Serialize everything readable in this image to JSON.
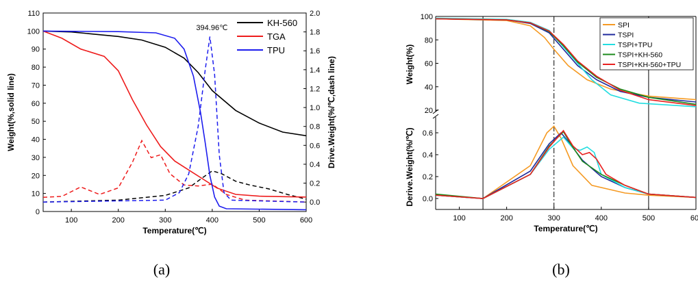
{
  "chart_data": [
    {
      "type": "line",
      "panel_label": "(a)",
      "xlabel": "Temperature(℃)",
      "ylabel_left": "Weight(%,solid line)",
      "ylabel_right": "Drive.Weight(%/℃,dash line)",
      "xlim": [
        40,
        600
      ],
      "ylim_left": [
        0,
        110
      ],
      "ylim_right": [
        -0.1,
        2.0
      ],
      "xticks": [
        "100",
        "200",
        "300",
        "400",
        "500",
        "600"
      ],
      "yticks_left": [
        "0",
        "10",
        "20",
        "30",
        "40",
        "50",
        "60",
        "70",
        "80",
        "90",
        "100",
        "110"
      ],
      "yticks_right": [
        "0.0",
        "0.2",
        "0.4",
        "0.6",
        "0.8",
        "1.0",
        "1.2",
        "1.4",
        "1.6",
        "1.8",
        "2.0"
      ],
      "legend_position": "top-right",
      "annotation": "394.96℃",
      "series": [
        {
          "name": "KH-560",
          "color": "#000000",
          "weight": [
            [
              40,
              100
            ],
            [
              100,
              99.5
            ],
            [
              200,
              97
            ],
            [
              250,
              95
            ],
            [
              300,
              91
            ],
            [
              340,
              85
            ],
            [
              370,
              77
            ],
            [
              400,
              67
            ],
            [
              450,
              56
            ],
            [
              500,
              49
            ],
            [
              550,
              44
            ],
            [
              600,
              42
            ]
          ],
          "deriv": [
            [
              40,
              0
            ],
            [
              200,
              0.02
            ],
            [
              300,
              0.07
            ],
            [
              350,
              0.15
            ],
            [
              380,
              0.26
            ],
            [
              400,
              0.33
            ],
            [
              420,
              0.3
            ],
            [
              450,
              0.22
            ],
            [
              480,
              0.18
            ],
            [
              520,
              0.14
            ],
            [
              560,
              0.08
            ],
            [
              600,
              0.03
            ]
          ]
        },
        {
          "name": "TGA",
          "color": "#ee1c1c",
          "weight": [
            [
              40,
              100
            ],
            [
              80,
              96
            ],
            [
              120,
              90
            ],
            [
              170,
              86
            ],
            [
              200,
              78
            ],
            [
              230,
              62
            ],
            [
              260,
              48
            ],
            [
              290,
              36
            ],
            [
              320,
              28
            ],
            [
              350,
              23
            ],
            [
              380,
              18
            ],
            [
              410,
              13
            ],
            [
              450,
              9.5
            ],
            [
              500,
              8.5
            ],
            [
              600,
              8
            ]
          ],
          "deriv": [
            [
              40,
              0.05
            ],
            [
              80,
              0.06
            ],
            [
              120,
              0.16
            ],
            [
              160,
              0.08
            ],
            [
              200,
              0.15
            ],
            [
              230,
              0.42
            ],
            [
              250,
              0.65
            ],
            [
              270,
              0.47
            ],
            [
              290,
              0.5
            ],
            [
              310,
              0.3
            ],
            [
              340,
              0.18
            ],
            [
              370,
              0.17
            ],
            [
              400,
              0.19
            ],
            [
              430,
              0.08
            ],
            [
              470,
              0.02
            ],
            [
              600,
              0
            ]
          ]
        },
        {
          "name": "TPU",
          "color": "#1c1cee",
          "weight": [
            [
              40,
              100
            ],
            [
              200,
              99.7
            ],
            [
              280,
              99
            ],
            [
              320,
              96
            ],
            [
              340,
              90
            ],
            [
              360,
              75
            ],
            [
              375,
              55
            ],
            [
              385,
              38
            ],
            [
              395,
              20
            ],
            [
              405,
              8
            ],
            [
              415,
              3
            ],
            [
              430,
              1.5
            ],
            [
              600,
              1
            ]
          ],
          "deriv": [
            [
              40,
              0
            ],
            [
              300,
              0.02
            ],
            [
              330,
              0.1
            ],
            [
              350,
              0.3
            ],
            [
              370,
              0.8
            ],
            [
              385,
              1.4
            ],
            [
              395,
              1.75
            ],
            [
              405,
              1.35
            ],
            [
              415,
              0.5
            ],
            [
              425,
              0.1
            ],
            [
              440,
              0.02
            ],
            [
              600,
              0
            ]
          ]
        }
      ]
    },
    {
      "type": "line",
      "panel_label": "(b)",
      "xlabel": "Temperature(℃)",
      "ylabel_top": "Weight(%)",
      "ylabel_bottom": "Derive.Weight(%/℃)",
      "xlim": [
        50,
        600
      ],
      "ylim_top": [
        20,
        100
      ],
      "ylim_bottom": [
        -0.1,
        0.75
      ],
      "xticks": [
        "100",
        "200",
        "300",
        "400",
        "500",
        "60"
      ],
      "yticks_top": [
        "20",
        "40",
        "60",
        "80",
        "100"
      ],
      "yticks_bottom": [
        "0.0",
        "0.2",
        "0.4",
        "0.6"
      ],
      "vertical_lines": [
        150,
        300,
        500
      ],
      "legend_position": "top-right",
      "series": [
        {
          "name": "SPI",
          "color": "#f59a23",
          "weight": [
            [
              50,
              98
            ],
            [
              200,
              96.5
            ],
            [
              250,
              92
            ],
            [
              280,
              82
            ],
            [
              300,
              72
            ],
            [
              330,
              58
            ],
            [
              370,
              46
            ],
            [
              420,
              38
            ],
            [
              500,
              32
            ],
            [
              600,
              29
            ]
          ],
          "deriv": [
            [
              50,
              0.03
            ],
            [
              150,
              0
            ],
            [
              250,
              0.3
            ],
            [
              285,
              0.6
            ],
            [
              300,
              0.66
            ],
            [
              315,
              0.55
            ],
            [
              340,
              0.3
            ],
            [
              380,
              0.12
            ],
            [
              450,
              0.05
            ],
            [
              500,
              0.03
            ],
            [
              600,
              0.01
            ]
          ]
        },
        {
          "name": "TSPI",
          "color": "#1f2a9c",
          "weight": [
            [
              50,
              98
            ],
            [
              200,
              97
            ],
            [
              250,
              94
            ],
            [
              290,
              86
            ],
            [
              320,
              72
            ],
            [
              350,
              58
            ],
            [
              390,
              46
            ],
            [
              440,
              36
            ],
            [
              500,
              31
            ],
            [
              600,
              27
            ]
          ],
          "deriv": [
            [
              50,
              0.03
            ],
            [
              150,
              0
            ],
            [
              250,
              0.25
            ],
            [
              290,
              0.5
            ],
            [
              315,
              0.6
            ],
            [
              330,
              0.52
            ],
            [
              360,
              0.35
            ],
            [
              400,
              0.2
            ],
            [
              450,
              0.1
            ],
            [
              500,
              0.04
            ],
            [
              600,
              0.01
            ]
          ]
        },
        {
          "name": "TSPI+TPU",
          "color": "#22dde0",
          "weight": [
            [
              50,
              98.5
            ],
            [
              200,
              97.5
            ],
            [
              250,
              95
            ],
            [
              290,
              88
            ],
            [
              320,
              74
            ],
            [
              350,
              60
            ],
            [
              380,
              46
            ],
            [
              420,
              33
            ],
            [
              480,
              26
            ],
            [
              600,
              23
            ]
          ],
          "deriv": [
            [
              50,
              0.03
            ],
            [
              150,
              0
            ],
            [
              250,
              0.22
            ],
            [
              290,
              0.45
            ],
            [
              320,
              0.56
            ],
            [
              340,
              0.46
            ],
            [
              355,
              0.44
            ],
            [
              370,
              0.47
            ],
            [
              385,
              0.42
            ],
            [
              400,
              0.22
            ],
            [
              450,
              0.1
            ],
            [
              500,
              0.04
            ],
            [
              600,
              0.01
            ]
          ]
        },
        {
          "name": "TSPI+KH-560",
          "color": "#1b8a1b",
          "weight": [
            [
              50,
              98
            ],
            [
              200,
              97
            ],
            [
              250,
              94.5
            ],
            [
              290,
              87
            ],
            [
              320,
              75
            ],
            [
              350,
              61
            ],
            [
              390,
              48
            ],
            [
              440,
              38
            ],
            [
              500,
              31
            ],
            [
              600,
              25
            ]
          ],
          "deriv": [
            [
              50,
              0.04
            ],
            [
              150,
              0
            ],
            [
              250,
              0.22
            ],
            [
              290,
              0.48
            ],
            [
              320,
              0.61
            ],
            [
              335,
              0.5
            ],
            [
              360,
              0.34
            ],
            [
              400,
              0.22
            ],
            [
              450,
              0.12
            ],
            [
              500,
              0.04
            ],
            [
              600,
              0.01
            ]
          ]
        },
        {
          "name": "TSPI+KH-560+TPU",
          "color": "#e82020",
          "weight": [
            [
              50,
              98
            ],
            [
              200,
              97
            ],
            [
              250,
              94.5
            ],
            [
              290,
              87.5
            ],
            [
              320,
              76
            ],
            [
              350,
              62
            ],
            [
              390,
              49
            ],
            [
              440,
              37
            ],
            [
              500,
              29
            ],
            [
              600,
              24
            ]
          ],
          "deriv": [
            [
              50,
              0.03
            ],
            [
              150,
              0
            ],
            [
              250,
              0.22
            ],
            [
              290,
              0.47
            ],
            [
              320,
              0.62
            ],
            [
              340,
              0.48
            ],
            [
              360,
              0.4
            ],
            [
              375,
              0.42
            ],
            [
              390,
              0.36
            ],
            [
              410,
              0.22
            ],
            [
              450,
              0.12
            ],
            [
              500,
              0.04
            ],
            [
              600,
              0.01
            ]
          ]
        }
      ]
    }
  ]
}
